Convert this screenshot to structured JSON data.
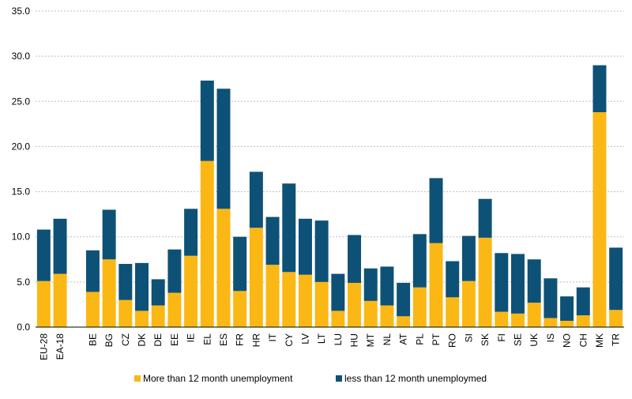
{
  "chart_data": {
    "type": "bar",
    "stacked": true,
    "title": "",
    "xlabel": "",
    "ylabel": "",
    "ylim": [
      0,
      35
    ],
    "yticks": [
      "0.0",
      "5.0",
      "10.0",
      "15.0",
      "20.0",
      "25.0",
      "30.0",
      "35.0"
    ],
    "grid": true,
    "legend_position": "bottom",
    "categories": [
      "EU-28",
      "EA-18",
      "",
      "BE",
      "BG",
      "CZ",
      "DK",
      "DE",
      "EE",
      "IE",
      "EL",
      "ES",
      "FR",
      "HR",
      "IT",
      "CY",
      "LV",
      "LT",
      "LU",
      "HU",
      "MT",
      "NL",
      "AT",
      "PL",
      "PT",
      "RO",
      "SI",
      "SK",
      "FI",
      "SE",
      "UK",
      "IS",
      "NO",
      "CH",
      "MK",
      "TR"
    ],
    "series": [
      {
        "name": "More than 12 month unemployment",
        "color": "#FBB714",
        "values": [
          5.1,
          5.9,
          null,
          3.9,
          7.5,
          3.0,
          1.8,
          2.4,
          3.8,
          7.9,
          18.4,
          13.1,
          4.0,
          11.0,
          6.9,
          6.1,
          5.8,
          5.0,
          1.8,
          4.9,
          2.9,
          2.4,
          1.2,
          4.4,
          9.3,
          3.3,
          5.1,
          9.9,
          1.7,
          1.5,
          2.7,
          1.0,
          0.7,
          1.3,
          23.8,
          1.9
        ]
      },
      {
        "name": "less than 12 month unemploymed",
        "color": "#0E5177",
        "values": [
          5.7,
          6.1,
          null,
          4.6,
          5.5,
          4.0,
          5.3,
          2.9,
          4.8,
          5.2,
          8.9,
          13.3,
          6.0,
          6.2,
          5.3,
          9.8,
          6.2,
          6.8,
          4.1,
          5.3,
          3.6,
          4.3,
          3.7,
          5.9,
          7.2,
          4.0,
          5.0,
          4.3,
          6.5,
          6.6,
          4.8,
          4.4,
          2.7,
          3.1,
          5.2,
          6.9
        ]
      }
    ]
  }
}
